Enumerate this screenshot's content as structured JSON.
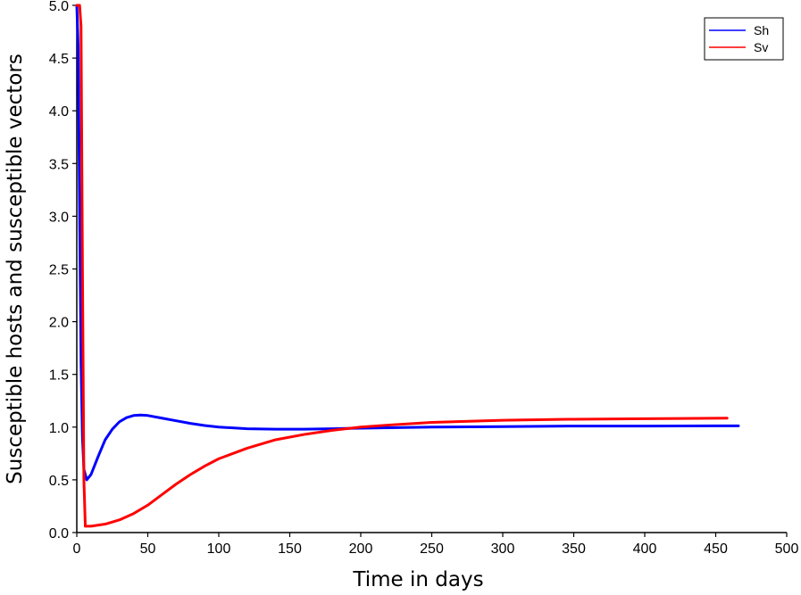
{
  "chart_data": {
    "type": "line",
    "title": "",
    "xlabel": "Time in days",
    "ylabel": "Susceptible hosts and susceptible vectors",
    "xlim": [
      0,
      500
    ],
    "ylim": [
      0,
      5.0
    ],
    "x_ticks": [
      0,
      50,
      100,
      150,
      200,
      250,
      300,
      350,
      400,
      450,
      500
    ],
    "y_ticks": [
      0.0,
      0.5,
      1.0,
      1.5,
      2.0,
      2.5,
      3.0,
      3.5,
      4.0,
      4.5,
      5.0
    ],
    "y_tick_labels": [
      "0.0",
      "0.5",
      "1.0",
      "1.5",
      "2.0",
      "2.5",
      "3.0",
      "3.5",
      "4.0",
      "4.5",
      "5.0"
    ],
    "x_tick_labels": [
      "0",
      "50",
      "100",
      "150",
      "200",
      "250",
      "300",
      "350",
      "400",
      "450",
      "500"
    ],
    "grid": false,
    "legend": "top-right",
    "series": [
      {
        "name": "Sh",
        "color": "#0000ff",
        "points": [
          [
            0,
            5.0
          ],
          [
            1,
            4.6
          ],
          [
            2,
            3.0
          ],
          [
            3,
            1.6
          ],
          [
            4,
            0.9
          ],
          [
            5,
            0.6
          ],
          [
            7,
            0.5
          ],
          [
            10,
            0.55
          ],
          [
            15,
            0.72
          ],
          [
            20,
            0.88
          ],
          [
            25,
            0.98
          ],
          [
            30,
            1.05
          ],
          [
            35,
            1.09
          ],
          [
            40,
            1.11
          ],
          [
            45,
            1.115
          ],
          [
            50,
            1.11
          ],
          [
            60,
            1.085
          ],
          [
            70,
            1.06
          ],
          [
            80,
            1.035
          ],
          [
            90,
            1.015
          ],
          [
            100,
            1.0
          ],
          [
            120,
            0.985
          ],
          [
            140,
            0.98
          ],
          [
            160,
            0.98
          ],
          [
            180,
            0.985
          ],
          [
            200,
            0.99
          ],
          [
            250,
            1.0
          ],
          [
            300,
            1.005
          ],
          [
            350,
            1.01
          ],
          [
            400,
            1.01
          ],
          [
            450,
            1.012
          ],
          [
            466,
            1.012
          ]
        ]
      },
      {
        "name": "Sv",
        "color": "#ff0000",
        "points": [
          [
            0,
            5.0
          ],
          [
            2,
            5.0
          ],
          [
            3,
            4.8
          ],
          [
            4,
            2.5
          ],
          [
            5,
            0.5
          ],
          [
            6,
            0.06
          ],
          [
            10,
            0.06
          ],
          [
            20,
            0.08
          ],
          [
            30,
            0.12
          ],
          [
            40,
            0.18
          ],
          [
            50,
            0.26
          ],
          [
            60,
            0.36
          ],
          [
            70,
            0.46
          ],
          [
            80,
            0.55
          ],
          [
            90,
            0.63
          ],
          [
            100,
            0.7
          ],
          [
            120,
            0.8
          ],
          [
            140,
            0.88
          ],
          [
            160,
            0.93
          ],
          [
            180,
            0.97
          ],
          [
            200,
            1.0
          ],
          [
            220,
            1.02
          ],
          [
            250,
            1.045
          ],
          [
            300,
            1.065
          ],
          [
            350,
            1.075
          ],
          [
            400,
            1.08
          ],
          [
            458,
            1.085
          ]
        ]
      }
    ]
  }
}
